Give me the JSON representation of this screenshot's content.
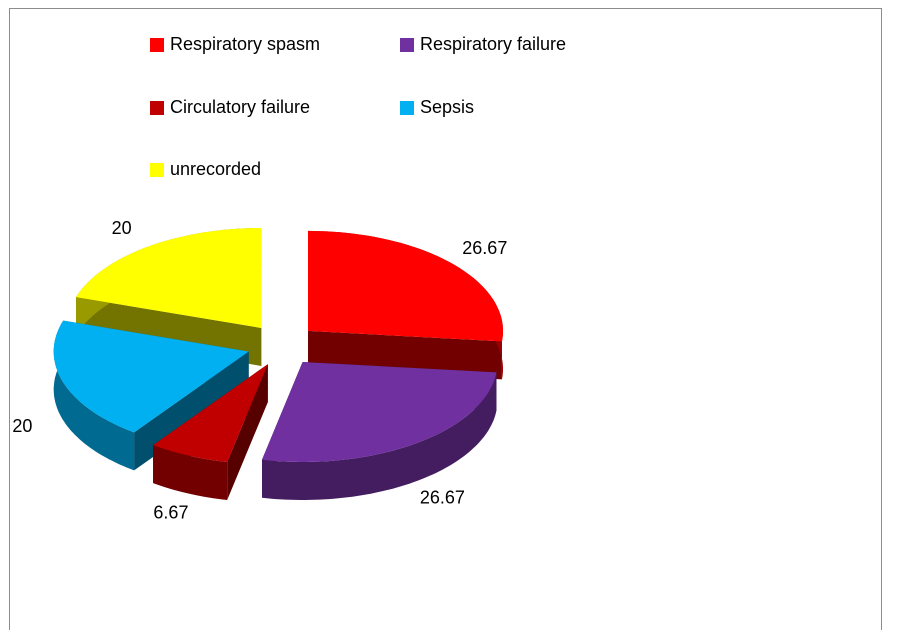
{
  "chart_data": {
    "type": "pie",
    "categories": [
      "Respiratory spasm",
      "Respiratory failure",
      "Circulatory failure",
      "Sepsis",
      "unrecorded"
    ],
    "values": [
      26.67,
      26.67,
      6.67,
      20,
      20
    ],
    "colors": [
      "#ff0000",
      "#7030a0",
      "#c00000",
      "#00b0f0",
      "#ffff00"
    ],
    "legend": "top"
  }
}
